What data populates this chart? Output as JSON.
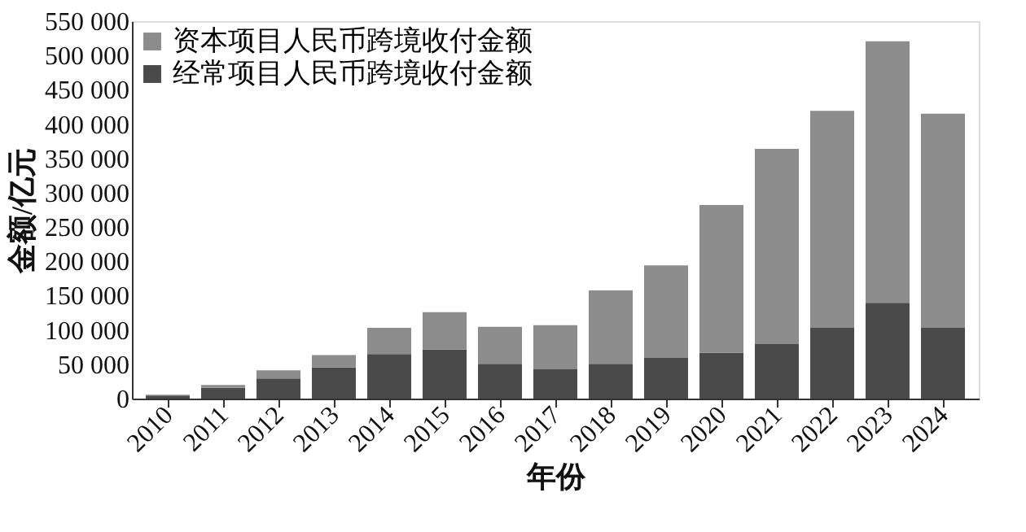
{
  "chart_data": {
    "type": "bar",
    "stacked": true,
    "xlabel": "年份",
    "ylabel": "金额/亿元",
    "categories": [
      "2010",
      "2011",
      "2012",
      "2013",
      "2014",
      "2015",
      "2016",
      "2017",
      "2018",
      "2019",
      "2020",
      "2021",
      "2022",
      "2023",
      "2024"
    ],
    "series": [
      {
        "name": "经常项目人民币跨境收付金额",
        "color": "#4a4a4a",
        "values": [
          4400,
          15800,
          29300,
          45200,
          65000,
          71300,
          50700,
          42800,
          50700,
          59400,
          66600,
          79300,
          103000,
          139500,
          103000
        ]
      },
      {
        "name": "资本项目人民币跨境收付金额",
        "color": "#8c8c8c",
        "values": [
          1100,
          4000,
          11900,
          18200,
          38000,
          54700,
          53900,
          64200,
          107000,
          134800,
          215500,
          284500,
          316200,
          381200,
          312300
        ]
      }
    ],
    "ylim": [
      0,
      550000
    ],
    "yticks": [
      0,
      {
        "value": 50000,
        "label": "50 000"
      },
      {
        "value": 100000,
        "label": "100 000"
      },
      {
        "value": 150000,
        "label": "150 000"
      },
      {
        "value": 200000,
        "label": "200 000"
      },
      {
        "value": 250000,
        "label": "250 000"
      },
      {
        "value": 300000,
        "label": "300 000"
      },
      {
        "value": 350000,
        "label": "350 000"
      },
      {
        "value": 400000,
        "label": "400 000"
      },
      {
        "value": 450000,
        "label": "450 000"
      },
      {
        "value": 500000,
        "label": "500 000"
      },
      {
        "value": 550000,
        "label": "550 000"
      }
    ],
    "grid": false,
    "legend": "top left"
  }
}
